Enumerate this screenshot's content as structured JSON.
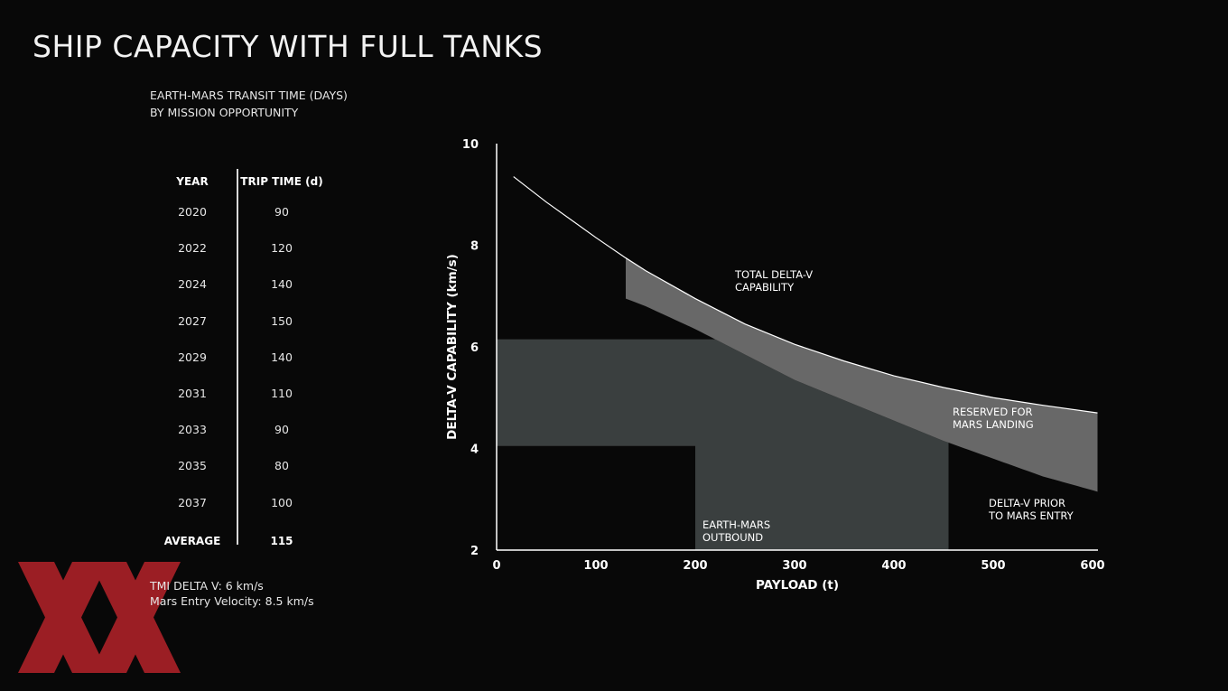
{
  "title": "SHIP CAPACITY WITH FULL TANKS",
  "subtitle_line1": "EARTH-MARS TRANSIT TIME (DAYS)",
  "subtitle_line2": "BY MISSION OPPORTUNITY",
  "table": {
    "headers": [
      "YEAR",
      "TRIP TIME (d)"
    ],
    "rows": [
      [
        "2020",
        "90"
      ],
      [
        "2022",
        "120"
      ],
      [
        "2024",
        "140"
      ],
      [
        "2027",
        "150"
      ],
      [
        "2029",
        "140"
      ],
      [
        "2031",
        "110"
      ],
      [
        "2033",
        "90"
      ],
      [
        "2035",
        "80"
      ],
      [
        "2037",
        "100"
      ]
    ],
    "average_label": "AVERAGE",
    "average_value": "115"
  },
  "notes": {
    "tmi": "TMI DELTA V: 6 km/s",
    "entry": "Mars Entry Velocity: 8.5 km/s"
  },
  "chart_data": {
    "type": "area",
    "xlabel": "PAYLOAD (t)",
    "ylabel": "DELTA-V CAPABILITY (km/s)",
    "xlim": [
      0,
      600
    ],
    "ylim": [
      2,
      10
    ],
    "xticks": [
      0,
      100,
      200,
      300,
      400,
      500,
      600
    ],
    "yticks": [
      2,
      4,
      6,
      8,
      10
    ],
    "grid": false,
    "series": [
      {
        "name": "TOTAL DELTA-V CAPABILITY",
        "x": [
          17,
          50,
          100,
          130,
          150,
          200,
          250,
          300,
          350,
          400,
          450,
          500,
          550,
          605
        ],
        "y": [
          9.35,
          8.85,
          8.15,
          7.75,
          7.5,
          6.95,
          6.45,
          6.05,
          5.72,
          5.43,
          5.2,
          5.0,
          4.85,
          4.7
        ]
      },
      {
        "name": "DELTA-V PRIOR TO MARS ENTRY",
        "x": [
          130,
          150,
          200,
          250,
          300,
          350,
          400,
          450,
          500,
          550,
          605
        ],
        "y": [
          6.95,
          6.8,
          6.35,
          5.85,
          5.35,
          4.95,
          4.55,
          4.15,
          3.8,
          3.45,
          3.15
        ]
      }
    ],
    "regions": [
      {
        "name": "EARTH-MARS OUTBOUND",
        "x": [
          0,
          200,
          455
        ],
        "y_top_left": 6.15,
        "y_bottom_left": 4.05
      },
      {
        "name": "RESERVED FOR MARS LANDING"
      }
    ],
    "annotations": [
      "TOTAL DELTA-V CAPABILITY",
      "RESERVED FOR MARS LANDING",
      "DELTA-V PRIOR TO MARS ENTRY",
      "EARTH-MARS OUTBOUND"
    ],
    "colors": {
      "outbound": "#3a3f3f",
      "reserved": "#686868",
      "curve": "#ffffff"
    }
  },
  "logo": {
    "name": "XX logo",
    "color": "#b5232a"
  }
}
